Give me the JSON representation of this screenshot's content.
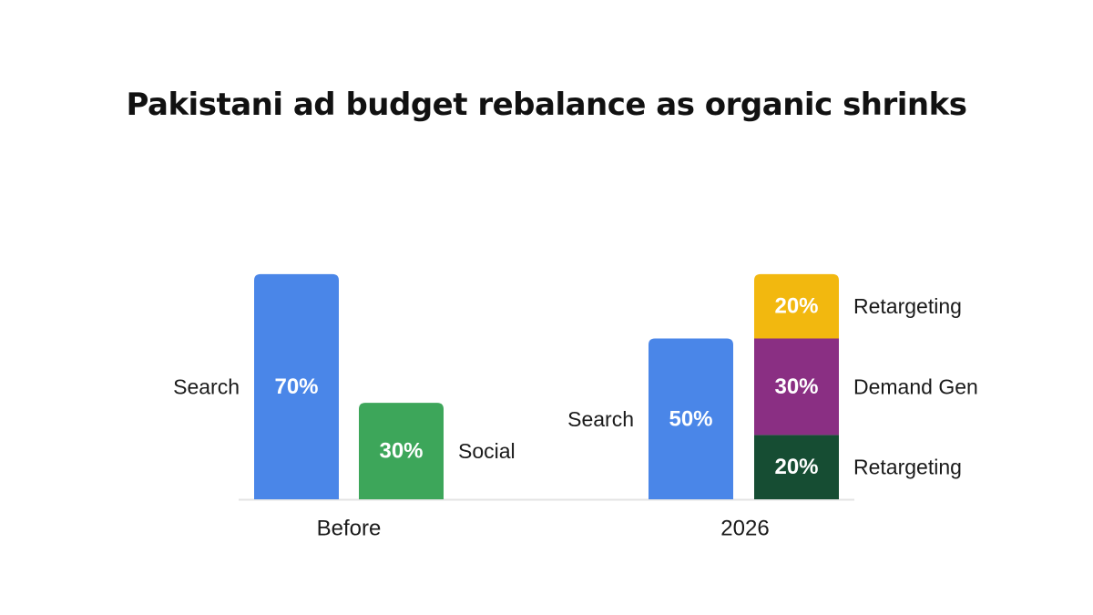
{
  "chart_data": {
    "type": "bar",
    "title": "Pakistani ad budget rebalance as organic shrinks",
    "ylim": [
      0,
      100
    ],
    "grid": false,
    "groups": [
      {
        "label": "Before",
        "bars": [
          {
            "segments": [
              {
                "name": "Search",
                "value": 70,
                "label": "70%",
                "color": "#4a86e8",
                "side": "left"
              }
            ]
          },
          {
            "segments": [
              {
                "name": "Social",
                "value": 30,
                "label": "30%",
                "color": "#3da65a",
                "side": "right"
              }
            ]
          }
        ]
      },
      {
        "label": "2026",
        "bars": [
          {
            "segments": [
              {
                "name": "Search",
                "value": 50,
                "label": "50%",
                "color": "#4a86e8",
                "side": "left"
              }
            ]
          },
          {
            "segments": [
              {
                "name": "Retargeting",
                "value": 20,
                "label": "20%",
                "color": "#164d33",
                "side": "right"
              },
              {
                "name": "Demand Gen",
                "value": 30,
                "label": "30%",
                "color": "#8a2f83",
                "side": "right"
              },
              {
                "name": "Retargeting",
                "value": 20,
                "label": "20%",
                "color": "#f2b80f",
                "side": "right"
              }
            ]
          }
        ]
      }
    ],
    "baseline_color": "#e3e3e3"
  }
}
